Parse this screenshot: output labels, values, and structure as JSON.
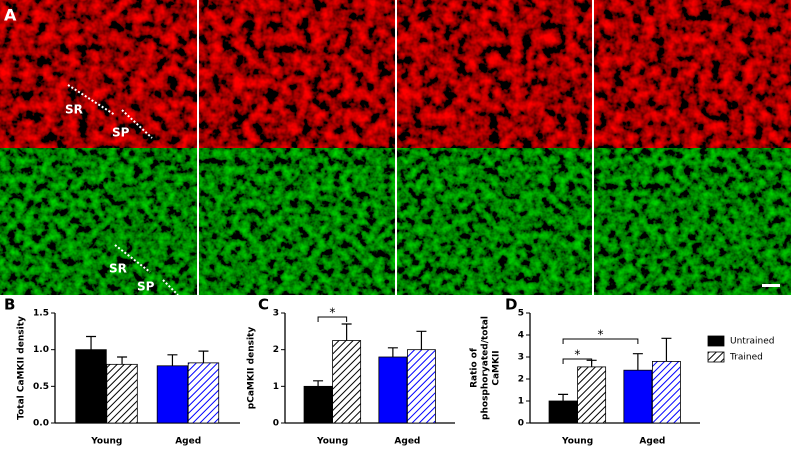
{
  "panel_a": {
    "label": "A",
    "annotations": [
      "SR",
      "SP",
      "SR",
      "SP"
    ]
  },
  "chart_data": [
    {
      "type": "bar",
      "panel": "B",
      "ylabel": "Total CaMKII density",
      "categories": [
        "Young",
        "Aged"
      ],
      "series": [
        {
          "name": "Untrained",
          "colors": [
            "#000000",
            "#0000ff"
          ],
          "pattern": "solid",
          "values": [
            1.0,
            0.78
          ],
          "errors": [
            0.18,
            0.15
          ]
        },
        {
          "name": "Trained",
          "colors": [
            "#000000",
            "#0000ff"
          ],
          "pattern": "hatch",
          "values": [
            0.8,
            0.82
          ],
          "errors": [
            0.1,
            0.16
          ]
        }
      ],
      "ylim": [
        0,
        1.5
      ],
      "yticks": [
        {
          "value": 0,
          "label": "0.0"
        },
        {
          "value": 0.5,
          "label": "0.5"
        },
        {
          "value": 1,
          "label": "1.0"
        },
        {
          "value": 1.5,
          "label": "1.5"
        }
      ],
      "annotations": []
    },
    {
      "type": "bar",
      "panel": "C",
      "ylabel": "pCaMKII density",
      "categories": [
        "Young",
        "Aged"
      ],
      "series": [
        {
          "name": "Untrained",
          "colors": [
            "#000000",
            "#0000ff"
          ],
          "pattern": "solid",
          "values": [
            1.0,
            1.8
          ],
          "errors": [
            0.15,
            0.25
          ]
        },
        {
          "name": "Trained",
          "colors": [
            "#000000",
            "#0000ff"
          ],
          "pattern": "hatch",
          "values": [
            2.25,
            2.0
          ],
          "errors": [
            0.45,
            0.5
          ]
        }
      ],
      "ylim": [
        0,
        3
      ],
      "yticks": [
        0,
        1,
        2,
        3
      ],
      "annotations": [
        "*"
      ]
    },
    {
      "type": "bar",
      "panel": "D",
      "ylabel": [
        "Ratio of",
        "phosphoryated/total",
        "CaMKII"
      ],
      "categories": [
        "Young",
        "Aged"
      ],
      "series": [
        {
          "name": "Untrained",
          "colors": [
            "#000000",
            "#0000ff"
          ],
          "pattern": "solid",
          "values": [
            1.0,
            2.4
          ],
          "errors": [
            0.3,
            0.75
          ]
        },
        {
          "name": "Trained",
          "colors": [
            "#000000",
            "#0000ff"
          ],
          "pattern": "hatch",
          "values": [
            2.55,
            2.8
          ],
          "errors": [
            0.3,
            1.05
          ]
        }
      ],
      "ylim": [
        0,
        5
      ],
      "yticks": [
        0,
        1,
        2,
        3,
        4,
        5
      ],
      "annotations": [
        "*",
        "*"
      ]
    }
  ]
}
